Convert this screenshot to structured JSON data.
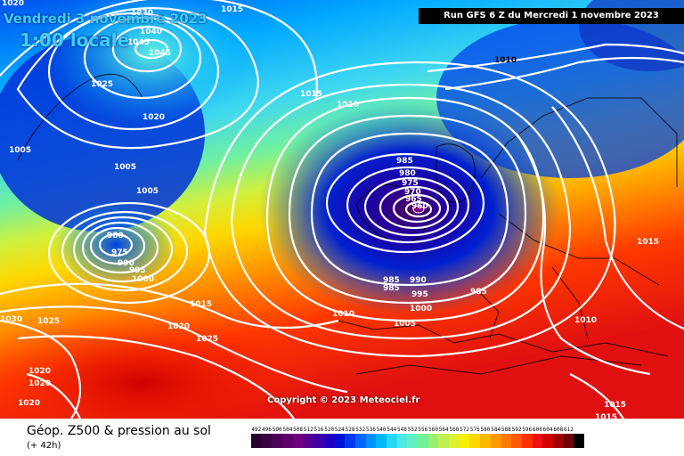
{
  "title": {
    "date": "Vendredi 3 novembre 2023",
    "time": "1:00 locale"
  },
  "run_label": "Run GFS 6 Z du Mercredi 1 novembre 2023",
  "copyright": "Copyright © 2023 Meteociel.fr",
  "legend": {
    "title": "Géop. Z500 & pression au sol",
    "subtitle": "(+ 42h)",
    "scale": [
      {
        "label": "492",
        "color": "#2a0030"
      },
      {
        "label": "496",
        "color": "#3c0044"
      },
      {
        "label": "500",
        "color": "#4d0058"
      },
      {
        "label": "504",
        "color": "#5e006c"
      },
      {
        "label": "508",
        "color": "#700080"
      },
      {
        "label": "512",
        "color": "#5a0090"
      },
      {
        "label": "516",
        "color": "#3e00a6"
      },
      {
        "label": "520",
        "color": "#2200bf"
      },
      {
        "label": "524",
        "color": "#0010d8"
      },
      {
        "label": "528",
        "color": "#0038ee"
      },
      {
        "label": "532",
        "color": "#0064ff"
      },
      {
        "label": "536",
        "color": "#0090ff"
      },
      {
        "label": "540",
        "color": "#00b8ff"
      },
      {
        "label": "544",
        "color": "#28d8f8"
      },
      {
        "label": "548",
        "color": "#50e8e0"
      },
      {
        "label": "552",
        "color": "#60f0c0"
      },
      {
        "label": "556",
        "color": "#70f098"
      },
      {
        "label": "560",
        "color": "#98f070"
      },
      {
        "label": "564",
        "color": "#c0f050"
      },
      {
        "label": "568",
        "color": "#e0f030"
      },
      {
        "label": "572",
        "color": "#f8f000"
      },
      {
        "label": "576",
        "color": "#ffd800"
      },
      {
        "label": "580",
        "color": "#ffb800"
      },
      {
        "label": "584",
        "color": "#ff9800"
      },
      {
        "label": "588",
        "color": "#ff7800"
      },
      {
        "label": "592",
        "color": "#ff5800"
      },
      {
        "label": "596",
        "color": "#ff3000"
      },
      {
        "label": "600",
        "color": "#f01010"
      },
      {
        "label": "604",
        "color": "#d00000"
      },
      {
        "label": "608",
        "color": "#a00000"
      },
      {
        "label": "612",
        "color": "#700000"
      },
      {
        "label": "",
        "color": "#000000"
      }
    ]
  },
  "isobar_labels": [
    "1015",
    "1030",
    "1040",
    "1045",
    "1045",
    "1025",
    "1020",
    "1005",
    "1005",
    "1005",
    "1015",
    "1010",
    "1010",
    "985",
    "980",
    "975",
    "970",
    "965",
    "960",
    "975",
    "980",
    "990",
    "995",
    "1000",
    "985",
    "990",
    "995",
    "1000",
    "985",
    "985",
    "1010",
    "1005",
    "1015",
    "1025",
    "1020",
    "1030",
    "1025",
    "1020",
    "1020",
    "1020",
    "1015",
    "1010",
    "1015",
    "1015",
    "1020"
  ],
  "colors": {
    "low_center": "#6a0070",
    "isobar": "#ffffff",
    "coast": "#000000"
  }
}
